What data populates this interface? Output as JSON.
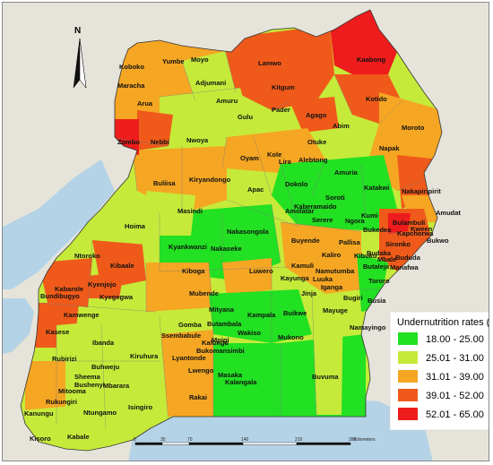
{
  "north_label": "N",
  "legend": {
    "title": "Undernutrition rates (%)",
    "classes": [
      {
        "label": "18.00 - 25.00",
        "color": "#22e022"
      },
      {
        "label": "25.01 - 31.00",
        "color": "#c6ea3a"
      },
      {
        "label": "31.01 - 39.00",
        "color": "#f5a623"
      },
      {
        "label": "39.01 - 52.00",
        "color": "#ef5a1a"
      },
      {
        "label": "52.01 - 65.00",
        "color": "#ee1c1c"
      }
    ]
  },
  "scale_bar": {
    "ticks": [
      "0",
      "35",
      "70",
      "140",
      "210",
      "280"
    ],
    "unit": "Kilometers"
  },
  "districts": [
    {
      "name": "Koboko",
      "class": 3
    },
    {
      "name": "Yumbe",
      "class": 2
    },
    {
      "name": "Moyo",
      "class": 2
    },
    {
      "name": "Maracha",
      "class": 2
    },
    {
      "name": "Adjumani",
      "class": 1
    },
    {
      "name": "Arua",
      "class": 2
    },
    {
      "name": "Amuru",
      "class": 2
    },
    {
      "name": "Zombo",
      "class": 4
    },
    {
      "name": "Nebbi",
      "class": 3
    },
    {
      "name": "Lamwo",
      "class": 3
    },
    {
      "name": "Kitgum",
      "class": 3
    },
    {
      "name": "Kaabong",
      "class": 4
    },
    {
      "name": "Kotido",
      "class": 3
    },
    {
      "name": "Pader",
      "class": 2
    },
    {
      "name": "Agago",
      "class": 3
    },
    {
      "name": "Abim",
      "class": 2
    },
    {
      "name": "Moroto",
      "class": 2
    },
    {
      "name": "Napak",
      "class": 2
    },
    {
      "name": "Gulu",
      "class": 1
    },
    {
      "name": "Nwoya",
      "class": 1
    },
    {
      "name": "Oyam",
      "class": 2
    },
    {
      "name": "Kole",
      "class": 2
    },
    {
      "name": "Lira",
      "class": 2
    },
    {
      "name": "Otuke",
      "class": 1
    },
    {
      "name": "Alebtong",
      "class": 2
    },
    {
      "name": "Buliisa",
      "class": 2
    },
    {
      "name": "Kiryandongo",
      "class": 1
    },
    {
      "name": "Apac",
      "class": 1
    },
    {
      "name": "Dokolo",
      "class": 1
    },
    {
      "name": "Amuria",
      "class": 1
    },
    {
      "name": "Katakwi",
      "class": 0
    },
    {
      "name": "Nakapiripirit",
      "class": 3
    },
    {
      "name": "Amudat",
      "class": 2
    },
    {
      "name": "Masindi",
      "class": 2
    },
    {
      "name": "Amolatar",
      "class": 2
    },
    {
      "name": "Soroti",
      "class": 0
    },
    {
      "name": "Kaberamaido",
      "class": 0
    },
    {
      "name": "Serere",
      "class": 0
    },
    {
      "name": "Ngora",
      "class": 0
    },
    {
      "name": "Kumi",
      "class": 0
    },
    {
      "name": "Bulambuli",
      "class": 4
    },
    {
      "name": "Kween",
      "class": 0
    },
    {
      "name": "Hoima",
      "class": 1
    },
    {
      "name": "Kyankwanzi",
      "class": 0
    },
    {
      "name": "Nakasongola",
      "class": 0
    },
    {
      "name": "Nakaseke",
      "class": 0
    },
    {
      "name": "Buyende",
      "class": 1
    },
    {
      "name": "Pallisa",
      "class": 1
    },
    {
      "name": "Bukedea",
      "class": 0
    },
    {
      "name": "Kapchorwa",
      "class": 0
    },
    {
      "name": "Sironko",
      "class": 4
    },
    {
      "name": "Bukwo",
      "class": 0
    },
    {
      "name": "Kibuku",
      "class": 0
    },
    {
      "name": "Budaka",
      "class": 1
    },
    {
      "name": "Mbale",
      "class": 3
    },
    {
      "name": "Bududa",
      "class": 3
    },
    {
      "name": "Manafwa",
      "class": 3
    },
    {
      "name": "Butaleja",
      "class": 0
    },
    {
      "name": "Ntoroko",
      "class": 2
    },
    {
      "name": "Kibaale",
      "class": 3
    },
    {
      "name": "Kiboga",
      "class": 0
    },
    {
      "name": "Luwero",
      "class": 2
    },
    {
      "name": "Kaliro",
      "class": 2
    },
    {
      "name": "Kamuli",
      "class": 2
    },
    {
      "name": "Kayunga",
      "class": 2
    },
    {
      "name": "Luuka",
      "class": 2
    },
    {
      "name": "Namutumba",
      "class": 2
    },
    {
      "name": "Iganga",
      "class": 2
    },
    {
      "name": "Tororo",
      "class": 0
    },
    {
      "name": "Kabarole",
      "class": 3
    },
    {
      "name": "Bundibugyo",
      "class": 3
    },
    {
      "name": "Kyenjojo",
      "class": 2
    },
    {
      "name": "Kyegegwa",
      "class": 3
    },
    {
      "name": "Mubende",
      "class": 1
    },
    {
      "name": "Jinja",
      "class": 2
    },
    {
      "name": "Bugiri",
      "class": 2
    },
    {
      "name": "Busia",
      "class": 0
    },
    {
      "name": "Kamwenge",
      "class": 3
    },
    {
      "name": "Mityana",
      "class": 0
    },
    {
      "name": "Kampala",
      "class": 0
    },
    {
      "name": "Buikwe",
      "class": 0
    },
    {
      "name": "Mayuge",
      "class": 1
    },
    {
      "name": "Kasese",
      "class": 3
    },
    {
      "name": "Gomba",
      "class": 1
    },
    {
      "name": "Butambala",
      "class": 0
    },
    {
      "name": "Wakiso",
      "class": 0
    },
    {
      "name": "Mpigi",
      "class": 0
    },
    {
      "name": "Mukono",
      "class": 0
    },
    {
      "name": "Namayingo",
      "class": 0
    },
    {
      "name": "Ibanda",
      "class": 1
    },
    {
      "name": "Ssembabule",
      "class": 1
    },
    {
      "name": "Kalungu",
      "class": 1
    },
    {
      "name": "Bukomansimbi",
      "class": 1
    },
    {
      "name": "Rubirizi",
      "class": 1
    },
    {
      "name": "Kiruhura",
      "class": 1
    },
    {
      "name": "Lyantonde",
      "class": 1
    },
    {
      "name": "Buhweju",
      "class": 1
    },
    {
      "name": "Sheema",
      "class": 1
    },
    {
      "name": "Bushenyi",
      "class": 1
    },
    {
      "name": "Mitooma",
      "class": 1
    },
    {
      "name": "Mbarara",
      "class": 1
    },
    {
      "name": "Lwengo",
      "class": 2
    },
    {
      "name": "Masaka",
      "class": 2
    },
    {
      "name": "Kalangala",
      "class": 0
    },
    {
      "name": "Buvuma",
      "class": 0
    },
    {
      "name": "Rukungiri",
      "class": 2
    },
    {
      "name": "Kanungu",
      "class": 1
    },
    {
      "name": "Ntungamo",
      "class": 1
    },
    {
      "name": "Isingiro",
      "class": 1
    },
    {
      "name": "Rakai",
      "class": 2
    },
    {
      "name": "Kabale",
      "class": 1
    },
    {
      "name": "Kisoro",
      "class": 1
    }
  ]
}
